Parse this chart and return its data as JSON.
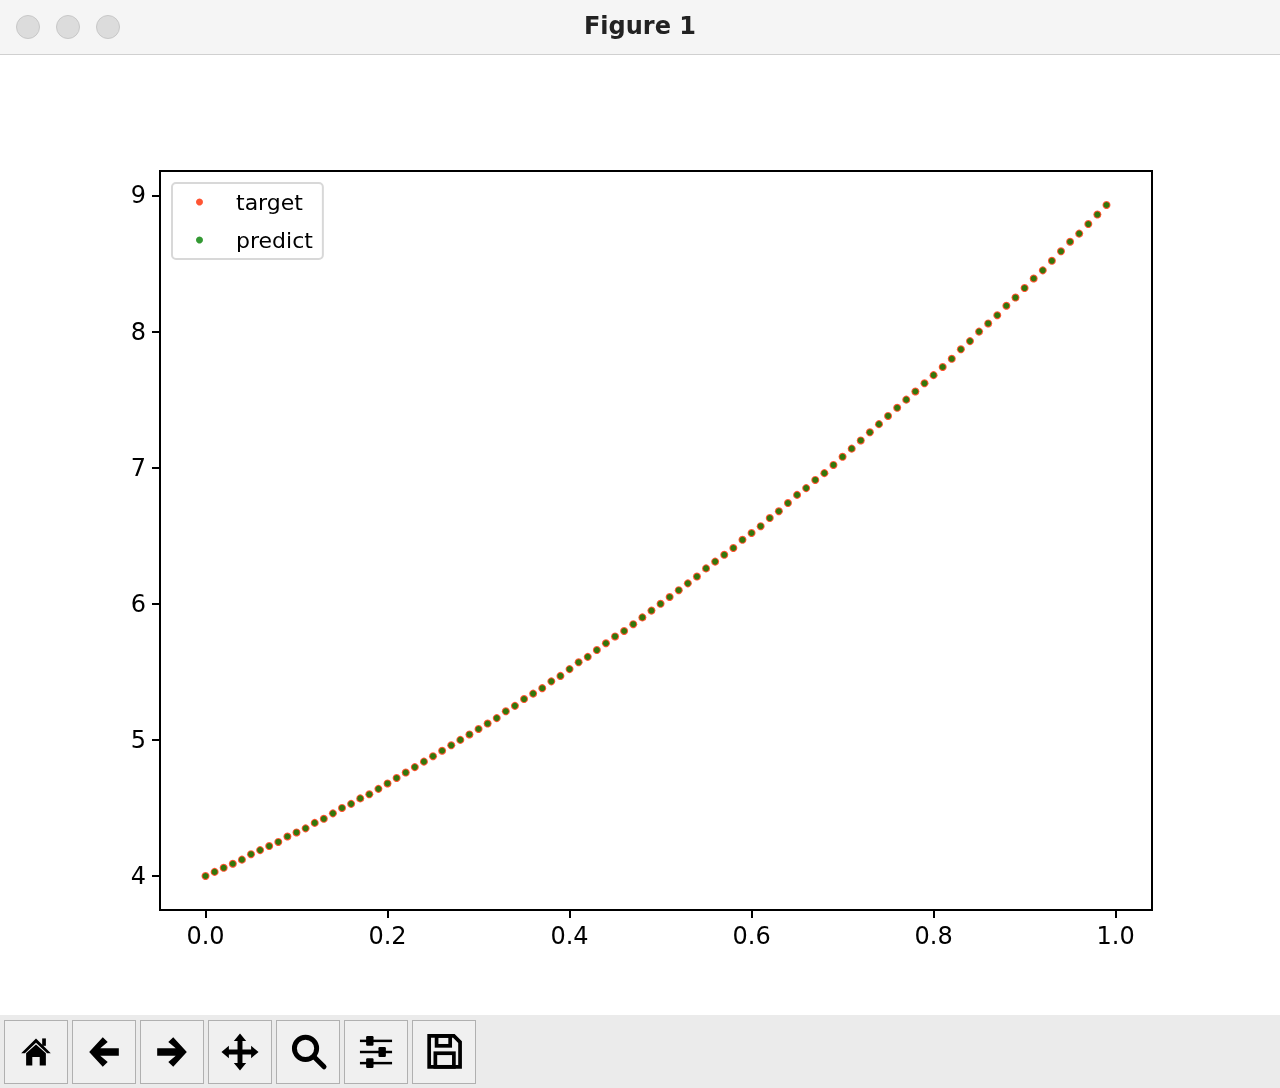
{
  "chart_data": {
    "type": "scatter",
    "title": "Figure 1",
    "x": [
      0,
      0.01,
      0.02,
      0.03,
      0.04,
      0.05,
      0.06,
      0.07,
      0.08,
      0.09,
      0.1,
      0.11,
      0.12,
      0.13,
      0.14,
      0.15,
      0.16,
      0.17,
      0.18,
      0.19,
      0.2,
      0.21,
      0.22,
      0.23,
      0.24,
      0.25,
      0.26,
      0.27,
      0.28,
      0.29,
      0.3,
      0.31,
      0.32,
      0.33,
      0.34,
      0.35,
      0.36,
      0.37,
      0.38,
      0.39,
      0.4,
      0.41,
      0.42,
      0.43,
      0.44,
      0.45,
      0.46,
      0.47,
      0.48,
      0.49,
      0.5,
      0.51,
      0.52,
      0.53,
      0.54,
      0.55,
      0.56,
      0.57,
      0.58,
      0.59,
      0.6,
      0.61,
      0.62,
      0.63,
      0.64,
      0.65,
      0.66,
      0.67,
      0.68,
      0.69,
      0.7,
      0.71,
      0.72,
      0.73,
      0.74,
      0.75,
      0.76,
      0.77,
      0.78,
      0.79,
      0.8,
      0.81,
      0.82,
      0.83,
      0.84,
      0.85,
      0.86,
      0.87,
      0.88,
      0.89,
      0.9,
      0.91,
      0.92,
      0.93,
      0.94,
      0.95,
      0.96,
      0.97,
      0.98,
      0.99
    ],
    "series": [
      {
        "name": "target",
        "color": "#ff2a00",
        "values": [
          4.0,
          4.03,
          4.06,
          4.09,
          4.12,
          4.16,
          4.19,
          4.22,
          4.25,
          4.29,
          4.32,
          4.35,
          4.39,
          4.42,
          4.46,
          4.5,
          4.53,
          4.57,
          4.6,
          4.64,
          4.68,
          4.72,
          4.76,
          4.8,
          4.84,
          4.88,
          4.92,
          4.96,
          5.0,
          5.04,
          5.08,
          5.12,
          5.16,
          5.21,
          5.25,
          5.3,
          5.34,
          5.38,
          5.43,
          5.47,
          5.52,
          5.57,
          5.61,
          5.66,
          5.71,
          5.76,
          5.8,
          5.85,
          5.9,
          5.95,
          6.0,
          6.05,
          6.1,
          6.15,
          6.2,
          6.26,
          6.31,
          6.36,
          6.41,
          6.47,
          6.52,
          6.57,
          6.63,
          6.68,
          6.74,
          6.8,
          6.85,
          6.91,
          6.96,
          7.02,
          7.08,
          7.14,
          7.2,
          7.26,
          7.32,
          7.38,
          7.44,
          7.5,
          7.56,
          7.62,
          7.68,
          7.74,
          7.8,
          7.87,
          7.93,
          8.0,
          8.06,
          8.12,
          8.19,
          8.25,
          8.32,
          8.39,
          8.45,
          8.52,
          8.59,
          8.66,
          8.72,
          8.79,
          8.86,
          8.93
        ]
      },
      {
        "name": "predict",
        "color": "#008000",
        "values": [
          4.0,
          4.03,
          4.06,
          4.09,
          4.12,
          4.16,
          4.19,
          4.22,
          4.25,
          4.29,
          4.32,
          4.35,
          4.39,
          4.42,
          4.46,
          4.5,
          4.53,
          4.57,
          4.6,
          4.64,
          4.68,
          4.72,
          4.76,
          4.8,
          4.84,
          4.88,
          4.92,
          4.96,
          5.0,
          5.04,
          5.08,
          5.12,
          5.16,
          5.21,
          5.25,
          5.3,
          5.34,
          5.38,
          5.43,
          5.47,
          5.52,
          5.57,
          5.61,
          5.66,
          5.71,
          5.76,
          5.8,
          5.85,
          5.9,
          5.95,
          6.0,
          6.05,
          6.1,
          6.15,
          6.2,
          6.26,
          6.31,
          6.36,
          6.41,
          6.47,
          6.52,
          6.57,
          6.63,
          6.68,
          6.74,
          6.8,
          6.85,
          6.91,
          6.96,
          7.02,
          7.08,
          7.14,
          7.2,
          7.26,
          7.32,
          7.38,
          7.44,
          7.5,
          7.56,
          7.62,
          7.68,
          7.74,
          7.8,
          7.87,
          7.93,
          8.0,
          8.06,
          8.12,
          8.19,
          8.25,
          8.32,
          8.39,
          8.45,
          8.52,
          8.59,
          8.66,
          8.72,
          8.79,
          8.86,
          8.93
        ]
      }
    ],
    "xlim": [
      -0.05,
      1.04
    ],
    "xticks": [
      {
        "value": 0,
        "label": "0.0"
      },
      {
        "value": 0.2,
        "label": "0.2"
      },
      {
        "value": 0.4,
        "label": "0.4"
      },
      {
        "value": 0.6,
        "label": "0.6"
      },
      {
        "value": 0.8,
        "label": "0.8"
      },
      {
        "value": 1,
        "label": "1.0"
      }
    ],
    "ylim": [
      3.75,
      9.18
    ],
    "yticks": [
      4,
      5,
      6,
      7,
      8,
      9
    ],
    "marker": "circle",
    "legend": "top left",
    "grid": false
  }
}
